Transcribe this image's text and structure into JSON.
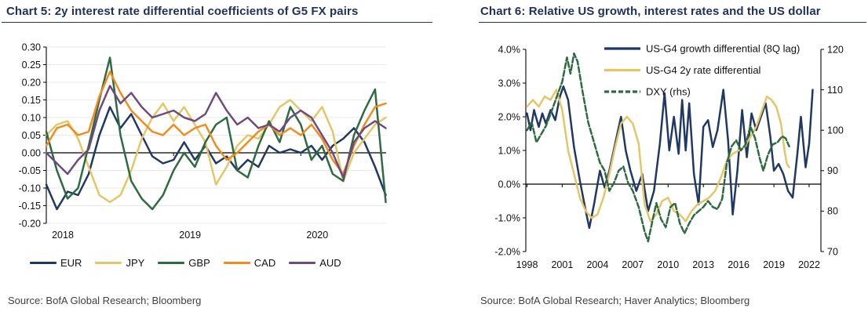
{
  "page": {
    "background": "#ffffff"
  },
  "chart_data": [
    {
      "type": "line",
      "title": "Chart 5: 2y interest rate differential coefficients of G5 FX pairs",
      "source": "Source: BofA Global Research; Bloomberg",
      "xlabel": "",
      "ylabel": "",
      "xlim": [
        2018,
        2020.67
      ],
      "x_ticks": [
        {
          "v": 2018,
          "t": "2018"
        },
        {
          "v": 2019,
          "t": "2019"
        },
        {
          "v": 2020,
          "t": "2020"
        }
      ],
      "left_axis": {
        "lim": [
          -0.2,
          0.3
        ],
        "ticks": [
          {
            "v": 0.3,
            "t": "0.30"
          },
          {
            "v": 0.25,
            "t": "0.25"
          },
          {
            "v": 0.2,
            "t": "0.20"
          },
          {
            "v": 0.15,
            "t": "0.15"
          },
          {
            "v": 0.1,
            "t": "0.10"
          },
          {
            "v": 0.05,
            "t": "0.05"
          },
          {
            "v": 0.0,
            "t": "0.00"
          },
          {
            "v": -0.05,
            "t": "-0.05"
          },
          {
            "v": -0.1,
            "t": "-0.10"
          },
          {
            "v": -0.15,
            "t": "-0.15"
          },
          {
            "v": -0.2,
            "t": "-0.20"
          }
        ]
      },
      "gridlines": true,
      "zero_line": true,
      "legend_position": "bottom",
      "x": [
        2018.0,
        2018.083,
        2018.167,
        2018.25,
        2018.333,
        2018.417,
        2018.5,
        2018.583,
        2018.667,
        2018.75,
        2018.833,
        2018.917,
        2019.0,
        2019.083,
        2019.167,
        2019.25,
        2019.333,
        2019.417,
        2019.5,
        2019.583,
        2019.667,
        2019.75,
        2019.833,
        2019.917,
        2020.0,
        2020.083,
        2020.167,
        2020.25,
        2020.333,
        2020.417,
        2020.5,
        2020.583,
        2020.667
      ],
      "series": [
        {
          "name": "EUR",
          "color": "#1F3864",
          "y": [
            -0.09,
            -0.16,
            -0.11,
            -0.12,
            -0.06,
            0.05,
            0.13,
            0.07,
            0.11,
            0.05,
            -0.01,
            -0.03,
            -0.02,
            0.03,
            -0.02,
            0.02,
            -0.03,
            -0.01,
            -0.05,
            -0.02,
            -0.04,
            0.02,
            0.0,
            0.01,
            0.0,
            0.02,
            -0.02,
            0.02,
            0.04,
            0.07,
            0.03,
            -0.04,
            -0.12
          ]
        },
        {
          "name": "JPY",
          "color": "#E3C667",
          "y": [
            0.05,
            0.08,
            0.09,
            0.04,
            -0.04,
            -0.12,
            -0.14,
            -0.12,
            -0.05,
            0.04,
            0.1,
            0.14,
            0.09,
            0.13,
            0.08,
            0.03,
            -0.09,
            -0.04,
            0.02,
            0.05,
            0.04,
            0.08,
            0.13,
            0.15,
            0.12,
            0.09,
            0.13,
            0.06,
            -0.08,
            0.0,
            0.04,
            0.08,
            0.1
          ]
        },
        {
          "name": "GBP",
          "color": "#2E6B40",
          "y": [
            0.06,
            -0.05,
            -0.13,
            -0.1,
            0.02,
            0.15,
            0.27,
            0.05,
            -0.08,
            -0.13,
            -0.16,
            -0.12,
            -0.05,
            0.0,
            -0.04,
            0.03,
            0.08,
            0.1,
            -0.05,
            -0.07,
            0.02,
            0.09,
            0.03,
            0.13,
            0.08,
            -0.02,
            0.02,
            -0.06,
            -0.08,
            0.05,
            0.12,
            0.18,
            -0.14
          ]
        },
        {
          "name": "CAD",
          "color": "#F28A1E",
          "y": [
            0.02,
            0.07,
            0.08,
            0.05,
            0.06,
            0.16,
            0.23,
            0.17,
            0.12,
            0.09,
            0.06,
            0.05,
            0.08,
            0.05,
            0.07,
            0.08,
            0.02,
            -0.02,
            0.0,
            0.03,
            0.06,
            0.08,
            0.05,
            0.07,
            0.05,
            0.08,
            0.04,
            -0.02,
            -0.06,
            0.02,
            0.08,
            0.13,
            0.14
          ]
        },
        {
          "name": "AUD",
          "color": "#6E4B7E",
          "y": [
            0.0,
            -0.03,
            -0.06,
            -0.02,
            0.01,
            0.12,
            0.19,
            0.14,
            0.17,
            0.13,
            0.1,
            0.11,
            0.12,
            0.1,
            0.09,
            0.11,
            0.17,
            0.12,
            0.08,
            0.1,
            0.07,
            0.08,
            0.06,
            0.1,
            0.12,
            0.1,
            0.05,
            0.0,
            -0.07,
            0.03,
            0.07,
            0.09,
            0.07
          ]
        }
      ]
    },
    {
      "type": "line",
      "title": "Chart 6: Relative US growth, interest rates and the US dollar",
      "source": "Source: BofA Global Research; Haver Analytics; Bloomberg",
      "xlabel": "",
      "ylabel": "",
      "xlim": [
        1997.9,
        2023.0
      ],
      "x_ticks": [
        {
          "v": 1998,
          "t": "1998"
        },
        {
          "v": 2001,
          "t": "2001"
        },
        {
          "v": 2004,
          "t": "2004"
        },
        {
          "v": 2007,
          "t": "2007"
        },
        {
          "v": 2010,
          "t": "2010"
        },
        {
          "v": 2013,
          "t": "2013"
        },
        {
          "v": 2016,
          "t": "2016"
        },
        {
          "v": 2019,
          "t": "2019"
        },
        {
          "v": 2022,
          "t": "2022"
        }
      ],
      "left_axis": {
        "lim": [
          -2.0,
          4.0
        ],
        "ticks": [
          {
            "v": 4.0,
            "t": "4.0%"
          },
          {
            "v": 3.0,
            "t": "3.0%"
          },
          {
            "v": 2.0,
            "t": "2.0%"
          },
          {
            "v": 1.0,
            "t": "1.0%"
          },
          {
            "v": 0.0,
            "t": "0.0%"
          },
          {
            "v": -1.0,
            "t": "-1.0%"
          },
          {
            "v": -2.0,
            "t": "-2.0%"
          }
        ]
      },
      "right_axis": {
        "lim": [
          70,
          120
        ],
        "ticks": [
          {
            "v": 120,
            "t": "120"
          },
          {
            "v": 110,
            "t": "110"
          },
          {
            "v": 100,
            "t": "100"
          },
          {
            "v": 90,
            "t": "90"
          },
          {
            "v": 80,
            "t": "80"
          },
          {
            "v": 70,
            "t": "70"
          }
        ]
      },
      "gridlines": false,
      "zero_line": true,
      "legend_position": "inside",
      "series": [
        {
          "name": "US-G4 growth differential (8Q lag)",
          "color": "#1F3864",
          "axis": "left",
          "x": [
            1998.0,
            1998.3,
            1998.6,
            1999.0,
            1999.3,
            1999.6,
            2000.0,
            2000.4,
            2000.8,
            2001.1,
            2001.5,
            2002.0,
            2002.5,
            2003.0,
            2003.3,
            2003.7,
            2004.2,
            2004.6,
            2005.0,
            2005.5,
            2006.0,
            2006.4,
            2006.8,
            2007.3,
            2007.8,
            2008.3,
            2008.8,
            2009.3,
            2009.7,
            2010.1,
            2010.5,
            2010.9,
            2011.2,
            2011.5,
            2011.8,
            2012.2,
            2012.6,
            2013.0,
            2013.4,
            2013.8,
            2014.2,
            2014.7,
            2015.1,
            2015.5,
            2015.9,
            2016.3,
            2016.7,
            2017.1,
            2017.5,
            2017.9,
            2018.3,
            2018.7,
            2019.0,
            2019.4,
            2019.8,
            2020.2,
            2020.6,
            2021.0,
            2021.3,
            2021.7,
            2022.0,
            2022.3
          ],
          "y": [
            2.1,
            1.6,
            2.2,
            1.7,
            2.1,
            1.8,
            2.2,
            1.9,
            2.6,
            2.9,
            2.5,
            1.1,
            0.1,
            -0.8,
            -1.3,
            -0.6,
            0.4,
            -0.1,
            0.4,
            1.2,
            2.0,
            1.0,
            0.4,
            -0.2,
            0.3,
            -0.8,
            -0.2,
            1.2,
            2.7,
            1.0,
            2.0,
            0.9,
            2.5,
            1.0,
            2.4,
            0.3,
            -0.6,
            1.7,
            1.9,
            1.1,
            1.6,
            2.8,
            1.3,
            -0.9,
            0.4,
            2.2,
            0.8,
            2.1,
            1.6,
            2.0,
            2.4,
            1.4,
            0.4,
            0.6,
            0.3,
            -0.2,
            -0.4,
            0.9,
            2.0,
            0.5,
            1.2,
            2.8
          ]
        },
        {
          "name": "US-G4 2y rate differential",
          "color": "#E3C667",
          "axis": "left",
          "x": [
            1998.0,
            1998.5,
            1999.0,
            1999.5,
            2000.0,
            2000.5,
            2001.0,
            2001.5,
            2002.0,
            2002.5,
            2003.0,
            2003.5,
            2004.0,
            2004.5,
            2005.0,
            2005.5,
            2006.0,
            2006.5,
            2007.0,
            2007.5,
            2008.0,
            2008.5,
            2009.0,
            2009.5,
            2010.0,
            2010.5,
            2011.0,
            2011.5,
            2012.0,
            2012.5,
            2013.0,
            2013.5,
            2014.0,
            2014.5,
            2015.0,
            2015.5,
            2016.0,
            2016.5,
            2017.0,
            2017.5,
            2018.0,
            2018.4,
            2018.8,
            2019.2,
            2019.6,
            2019.9,
            2020.1,
            2020.3
          ],
          "y": [
            2.3,
            2.5,
            2.3,
            2.6,
            2.5,
            2.8,
            2.2,
            1.0,
            0.3,
            -0.4,
            -0.8,
            -1.0,
            -0.9,
            -0.4,
            0.3,
            1.1,
            1.8,
            2.0,
            1.8,
            1.2,
            -0.6,
            -1.1,
            -0.9,
            -0.5,
            -0.4,
            -0.8,
            -0.9,
            -1.1,
            -0.8,
            -0.6,
            -0.5,
            -0.4,
            -0.2,
            0.2,
            0.7,
            0.9,
            1.0,
            1.1,
            1.4,
            1.7,
            2.2,
            2.6,
            2.5,
            2.3,
            1.8,
            1.0,
            0.6,
            0.5
          ]
        },
        {
          "name": "DXY (rhs)",
          "color": "#2E6B40",
          "axis": "right",
          "dash": true,
          "x": [
            1998.0,
            1998.4,
            1998.8,
            1999.2,
            1999.6,
            2000.0,
            2000.5,
            2001.0,
            2001.4,
            2001.7,
            2002.0,
            2002.3,
            2002.7,
            2003.2,
            2003.7,
            2004.2,
            2004.6,
            2005.0,
            2005.4,
            2005.8,
            2006.2,
            2006.6,
            2007.0,
            2007.5,
            2008.0,
            2008.3,
            2008.7,
            2009.0,
            2009.4,
            2009.8,
            2010.2,
            2010.6,
            2011.0,
            2011.4,
            2011.8,
            2012.2,
            2012.6,
            2013.0,
            2013.4,
            2013.8,
            2014.2,
            2014.6,
            2015.0,
            2015.4,
            2015.8,
            2016.2,
            2016.6,
            2017.0,
            2017.4,
            2017.8,
            2018.1,
            2018.5,
            2018.9,
            2019.3,
            2019.7,
            2020.0,
            2020.3
          ],
          "y": [
            100,
            102,
            97,
            99,
            101,
            104,
            108,
            112,
            118,
            114,
            119,
            117,
            110,
            102,
            97,
            92,
            90,
            85,
            87,
            90,
            91,
            87,
            85,
            81,
            75,
            72.5,
            78,
            82,
            78,
            76,
            81,
            82,
            77,
            74.5,
            77,
            79,
            80,
            81,
            82.5,
            81,
            80.5,
            83,
            92,
            96,
            97.5,
            95,
            96.5,
            101,
            98,
            93,
            90,
            94,
            96.5,
            97,
            98.5,
            98,
            96
          ]
        }
      ]
    }
  ]
}
